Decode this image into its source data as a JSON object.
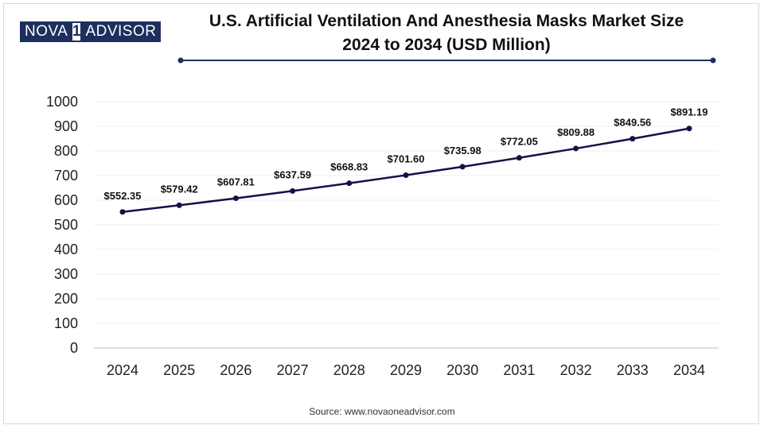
{
  "brand": {
    "logo_part1": "NOVA",
    "logo_mark": "1",
    "logo_part2": "ADVISOR",
    "color": "#1c2f5e"
  },
  "title_line1": "U.S. Artificial Ventilation And Anesthesia Masks Market Size",
  "title_line2": "2024 to 2034 (USD Million)",
  "source": "Source: www.novaoneadvisor.com",
  "chart_data": {
    "type": "line",
    "title": "U.S. Artificial Ventilation And Anesthesia Masks Market Size 2024 to 2034 (USD Million)",
    "xlabel": "",
    "ylabel": "",
    "categories": [
      "2024",
      "2025",
      "2026",
      "2027",
      "2028",
      "2029",
      "2030",
      "2031",
      "2032",
      "2033",
      "2034"
    ],
    "series": [
      {
        "name": "Market Size",
        "values": [
          552.35,
          579.42,
          607.81,
          637.59,
          668.83,
          701.6,
          735.98,
          772.05,
          809.88,
          849.56,
          891.19
        ],
        "labels": [
          "$552.35",
          "$579.42",
          "$607.81",
          "$637.59",
          "$668.83",
          "$701.60",
          "$735.98",
          "$772.05",
          "$809.88",
          "$849.56",
          "$891.19"
        ],
        "color": "#12124a"
      }
    ],
    "ylim": [
      0,
      1000
    ],
    "yticks": [
      "0",
      "100",
      "200",
      "300",
      "400",
      "500",
      "600",
      "700",
      "800",
      "900",
      "1000"
    ],
    "grid": true
  }
}
